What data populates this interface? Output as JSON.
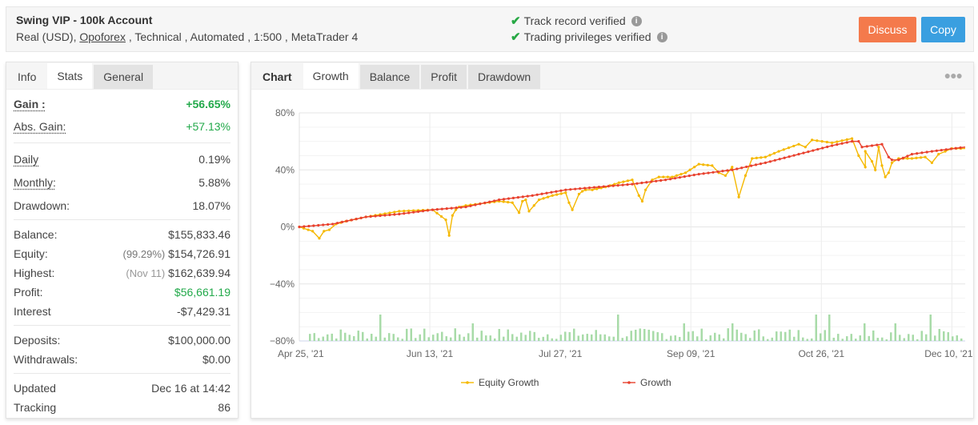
{
  "header": {
    "title": "Swing VIP - 100k Account",
    "subtitle_prefix": "Real (USD), ",
    "broker": "Opoforex",
    "subtitle_suffix": " , Technical , Automated , 1:500 , MetaTrader 4",
    "verifications": [
      "Track record verified",
      "Trading privileges verified"
    ],
    "discuss_label": "Discuss",
    "copy_label": "Copy",
    "colors": {
      "discuss": "#f47a4c",
      "copy": "#3a9fe0",
      "check": "#27a844"
    }
  },
  "left_panel": {
    "tabs": [
      {
        "label": "Info"
      },
      {
        "label": "Stats"
      },
      {
        "label": "General"
      }
    ],
    "active_tab": "Stats",
    "gain": {
      "label": "Gain :",
      "value": "+56.65%"
    },
    "abs_gain": {
      "label": "Abs. Gain:",
      "value": "+57.13%"
    },
    "daily": {
      "label": "Daily",
      "value": "0.19%"
    },
    "monthly": {
      "label": "Monthly:",
      "value": "5.88%"
    },
    "drawdown": {
      "label": "Drawdown:",
      "value": "18.07%"
    },
    "balance": {
      "label": "Balance:",
      "value": "$155,833.46"
    },
    "equity": {
      "label": "Equity:",
      "note": "(99.29%)",
      "value": "$154,726.91"
    },
    "highest": {
      "label": "Highest:",
      "note": "(Nov 11)",
      "value": "$162,639.94"
    },
    "profit": {
      "label": "Profit:",
      "value": "$56,661.19"
    },
    "interest": {
      "label": "Interest",
      "value": "-$7,429.31"
    },
    "deposits": {
      "label": "Deposits:",
      "value": "$100,000.00"
    },
    "withdrawals": {
      "label": "Withdrawals:",
      "value": "$0.00"
    },
    "updated": {
      "label": "Updated",
      "value": "Dec 16 at 14:42"
    },
    "tracking": {
      "label": "Tracking",
      "value": "86"
    }
  },
  "chart_panel": {
    "tabs": [
      {
        "label": "Chart"
      },
      {
        "label": "Growth"
      },
      {
        "label": "Balance"
      },
      {
        "label": "Profit"
      },
      {
        "label": "Drawdown"
      }
    ],
    "active_tab": "Growth",
    "menu_icon": "ellipsis-icon"
  },
  "chart_data": {
    "type": "line",
    "title": "Growth",
    "xlabel": "",
    "ylabel": "",
    "ylim": [
      -80,
      80
    ],
    "yticks": [
      "80%",
      "40%",
      "0%",
      "-40%",
      "-80%"
    ],
    "xticks": [
      "Apr 25, '21",
      "Jun 13, '21",
      "Jul 27, '21",
      "Sep 09, '21",
      "Oct 26, '21",
      "Dec 10, '21"
    ],
    "grid": true,
    "legend_position": "bottom",
    "series": [
      {
        "name": "Equity Growth",
        "color": "#f5b800",
        "x_frac": [
          0,
          0.02,
          0.03,
          0.037,
          0.045,
          0.055,
          0.07,
          0.1,
          0.15,
          0.2,
          0.22,
          0.225,
          0.23,
          0.235,
          0.24,
          0.25,
          0.3,
          0.32,
          0.33,
          0.335,
          0.34,
          0.345,
          0.36,
          0.38,
          0.4,
          0.405,
          0.41,
          0.42,
          0.425,
          0.43,
          0.44,
          0.46,
          0.48,
          0.5,
          0.51,
          0.515,
          0.52,
          0.53,
          0.54,
          0.56,
          0.58,
          0.6,
          0.62,
          0.63,
          0.64,
          0.65,
          0.66,
          0.67,
          0.68,
          0.7,
          0.72,
          0.75,
          0.76,
          0.77,
          0.8,
          0.83,
          0.84,
          0.85,
          0.85,
          0.86,
          0.865,
          0.87,
          0.875,
          0.88,
          0.885,
          0.89,
          0.9,
          0.92,
          0.94,
          0.95,
          0.96,
          0.97,
          0.98,
          1.0
        ],
        "values": [
          0,
          -3,
          -8,
          -3,
          -2,
          2,
          4,
          7,
          11,
          12,
          5,
          -6,
          8,
          12,
          14,
          15,
          18,
          17,
          10,
          18,
          19,
          11,
          19,
          22,
          24,
          17,
          12,
          23,
          25,
          26,
          26,
          28,
          31,
          33,
          22,
          18,
          26,
          33,
          35,
          35,
          38,
          44,
          43,
          38,
          36,
          42,
          21,
          36,
          48,
          49,
          53,
          58,
          56,
          61,
          59,
          62,
          50,
          42,
          53,
          46,
          40,
          56,
          43,
          35,
          38,
          45,
          48,
          48,
          49,
          45,
          51,
          53,
          55,
          55
        ]
      },
      {
        "name": "Growth",
        "color": "#e8412e",
        "x_frac": [
          0,
          0.05,
          0.1,
          0.15,
          0.2,
          0.25,
          0.3,
          0.35,
          0.4,
          0.45,
          0.5,
          0.55,
          0.6,
          0.65,
          0.7,
          0.75,
          0.8,
          0.83,
          0.84,
          0.845,
          0.875,
          0.885,
          0.89,
          0.9,
          0.92,
          0.95,
          1.0
        ],
        "values": [
          0,
          2,
          7,
          9,
          12,
          14,
          19,
          22,
          26,
          28,
          30,
          33,
          37,
          40,
          45,
          51,
          57,
          60,
          60,
          56,
          58,
          49,
          47,
          47,
          51,
          53,
          56
        ]
      },
      {
        "name": "Volume bars",
        "color": "#a8dba8",
        "type": "bar",
        "baseline": -80,
        "note": "small daily bars along -80% baseline, peak near -60%"
      }
    ]
  }
}
